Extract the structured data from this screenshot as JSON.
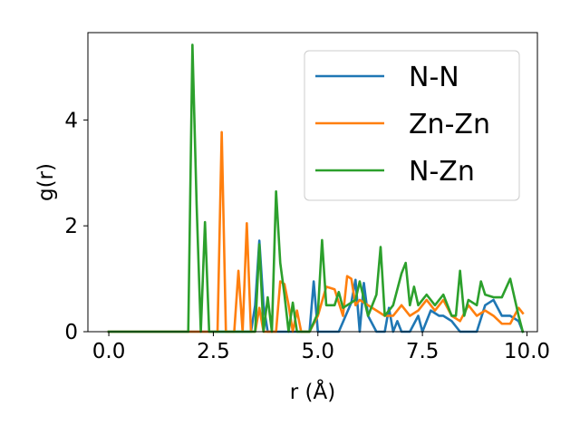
{
  "chart_data": {
    "type": "line",
    "xlabel": "r (Å)",
    "ylabel": "g(r)",
    "xlim": [
      -0.5,
      10.25
    ],
    "ylim": [
      0,
      5.65
    ],
    "xticks": [
      0.0,
      2.5,
      5.0,
      7.5,
      10.0
    ],
    "xtick_labels": [
      "0.0",
      "2.5",
      "5.0",
      "7.5",
      "10.0"
    ],
    "yticks": [
      0,
      2,
      4
    ],
    "ytick_labels": [
      "0",
      "2",
      "4"
    ],
    "grid": false,
    "legend_position": "top-right",
    "series": [
      {
        "name": "N-N",
        "color": "#1f77b4",
        "x": [
          0,
          0.5,
          1.0,
          1.5,
          2.0,
          2.5,
          3.0,
          3.4,
          3.5,
          3.6,
          3.7,
          3.8,
          4.0,
          4.5,
          4.8,
          4.9,
          5.0,
          5.1,
          5.5,
          5.8,
          5.9,
          6.0,
          6.1,
          6.2,
          6.4,
          6.6,
          6.7,
          6.8,
          6.9,
          7.0,
          7.2,
          7.4,
          7.5,
          7.7,
          7.9,
          8.0,
          8.2,
          8.4,
          8.5,
          8.6,
          8.8,
          9.0,
          9.2,
          9.4,
          9.6,
          9.8,
          9.9
        ],
        "y": [
          0,
          0,
          0,
          0,
          0,
          0,
          0,
          0,
          0.5,
          1.72,
          0.5,
          0,
          0,
          0,
          0,
          0.95,
          0,
          0,
          0,
          0.55,
          0.98,
          0,
          0.92,
          0.3,
          0,
          0,
          0.45,
          0,
          0.2,
          0,
          0,
          0.3,
          0,
          0.4,
          0.3,
          0.3,
          0.2,
          0,
          0,
          0,
          0,
          0.5,
          0.6,
          0.3,
          0.3,
          0.2,
          0
        ]
      },
      {
        "name": "Zn-Zn",
        "color": "#ff7f0e",
        "x": [
          0,
          0.5,
          1.0,
          1.5,
          2.0,
          2.5,
          2.6,
          2.7,
          2.8,
          3.0,
          3.1,
          3.2,
          3.3,
          3.4,
          3.5,
          3.6,
          3.7,
          3.8,
          4.0,
          4.1,
          4.2,
          4.3,
          4.4,
          4.5,
          4.6,
          4.8,
          5.0,
          5.2,
          5.4,
          5.6,
          5.7,
          5.8,
          5.9,
          6.0,
          6.2,
          6.4,
          6.6,
          6.8,
          7.0,
          7.2,
          7.4,
          7.6,
          7.8,
          8.0,
          8.2,
          8.4,
          8.6,
          8.8,
          9.0,
          9.2,
          9.4,
          9.6,
          9.8,
          9.9
        ],
        "y": [
          0,
          0,
          0,
          0,
          0,
          0,
          0,
          3.77,
          0,
          0,
          1.15,
          0,
          2.05,
          0,
          0,
          0.45,
          0,
          0,
          0,
          0.95,
          0.9,
          0.5,
          0,
          0.4,
          0,
          0,
          0.3,
          0.85,
          0.8,
          0.3,
          1.05,
          1.0,
          0.5,
          0.6,
          0.5,
          0.4,
          0.3,
          0.3,
          0.5,
          0.3,
          0.4,
          0.6,
          0.4,
          0.6,
          0.3,
          0.2,
          0.5,
          0.3,
          0.4,
          0.3,
          0.15,
          0.15,
          0.45,
          0.35
        ]
      },
      {
        "name": "N-Zn",
        "color": "#2ca02c",
        "x": [
          0,
          0.5,
          1.0,
          1.5,
          1.9,
          2.0,
          2.1,
          2.2,
          2.3,
          2.4,
          2.6,
          2.8,
          3.0,
          3.3,
          3.5,
          3.6,
          3.7,
          3.8,
          3.9,
          4.0,
          4.1,
          4.2,
          4.3,
          4.4,
          4.5,
          4.6,
          4.8,
          5.0,
          5.1,
          5.2,
          5.4,
          5.5,
          5.6,
          5.8,
          5.9,
          6.0,
          6.2,
          6.4,
          6.5,
          6.6,
          6.8,
          7.0,
          7.1,
          7.2,
          7.3,
          7.4,
          7.5,
          7.6,
          7.8,
          8.0,
          8.2,
          8.3,
          8.4,
          8.5,
          8.6,
          8.8,
          8.9,
          9.0,
          9.2,
          9.4,
          9.6,
          9.8,
          9.9
        ],
        "y": [
          0,
          0,
          0,
          0,
          0,
          5.42,
          2.4,
          0,
          2.07,
          0,
          0,
          0,
          0,
          0,
          0,
          1.65,
          0,
          0.65,
          0,
          2.65,
          1.3,
          0.7,
          0,
          0.55,
          0,
          0,
          0,
          0.35,
          1.73,
          0.5,
          0.5,
          0.75,
          0.45,
          0.55,
          0.6,
          0.95,
          0.3,
          0.7,
          1.6,
          0.3,
          0.5,
          1.1,
          1.3,
          0.5,
          0.85,
          0.5,
          0.6,
          0.7,
          0.5,
          0.7,
          0.3,
          0.3,
          1.15,
          0.3,
          0.6,
          0.5,
          0.95,
          0.7,
          0.65,
          0.65,
          1.0,
          0.3,
          0.0
        ]
      }
    ]
  }
}
